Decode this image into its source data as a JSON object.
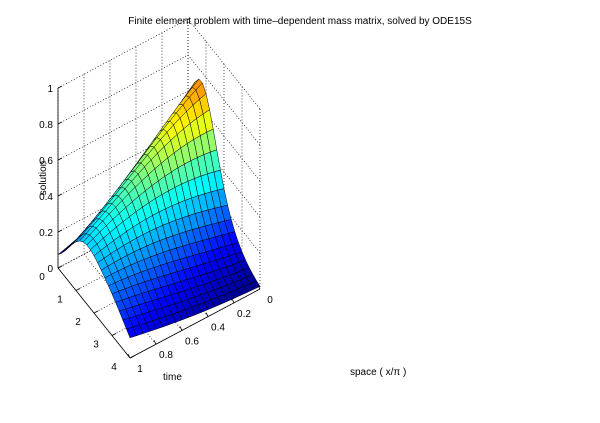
{
  "chart_data": {
    "type": "surface",
    "title": "Finite element problem with time–dependent mass matrix, solved by ODE15S",
    "xlabel": "space ( x/π )",
    "ylabel": "time",
    "zlabel": "solution",
    "xlim": [
      0,
      1
    ],
    "ylim": [
      0,
      4
    ],
    "zlim": [
      0,
      1
    ],
    "x_ticks": [
      "0",
      "0.2",
      "0.4",
      "0.6",
      "0.8",
      "1"
    ],
    "y_ticks": [
      "0",
      "1",
      "2",
      "3",
      "4"
    ],
    "z_ticks": [
      "0",
      "0.2",
      "0.4",
      "0.6",
      "0.8",
      "1"
    ],
    "grid": true,
    "colormap": "jet",
    "mesh": {
      "space_points": 21,
      "time_points": 21
    },
    "x": [
      0,
      0.05,
      0.1,
      0.15,
      0.2,
      0.25,
      0.3,
      0.35,
      0.4,
      0.45,
      0.5,
      0.55,
      0.6,
      0.65,
      0.7,
      0.75,
      0.8,
      0.85,
      0.9,
      0.95,
      1
    ],
    "y": [
      0,
      0.2,
      0.4,
      0.6,
      0.8,
      1,
      1.2,
      1.4,
      1.6,
      1.8,
      2,
      2.2,
      2.4,
      2.6,
      2.8,
      3,
      3.2,
      3.4,
      3.6,
      3.8,
      4
    ],
    "series_profile": {
      "name": "",
      "peak_solution": 1,
      "solution_at_x0_y0": 0.0,
      "solution_at_x1_y0": 0.16,
      "late_time_solution": 0.02
    }
  }
}
